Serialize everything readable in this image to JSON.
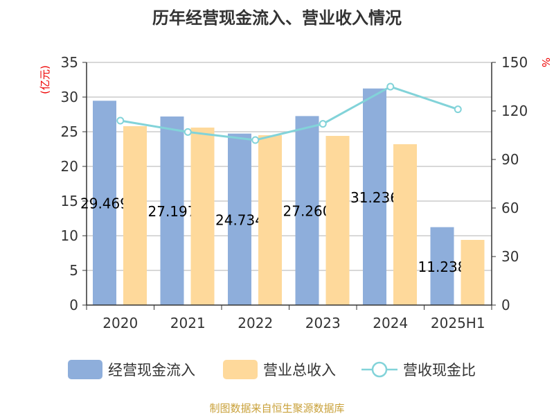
{
  "title": "历年经营现金流入、营业收入情况",
  "source": "制图数据来自恒生聚源数据库",
  "chart_data": {
    "type": "bar+line",
    "categories": [
      "2020",
      "2021",
      "2022",
      "2023",
      "2024",
      "2025H1"
    ],
    "y_left": {
      "label": "(亿元)",
      "min": 0,
      "max": 35,
      "ticks": [
        0,
        5,
        10,
        15,
        20,
        25,
        30,
        35
      ]
    },
    "y_right": {
      "label": "%",
      "min": 0,
      "max": 150,
      "ticks": [
        0,
        30,
        60,
        90,
        120,
        150
      ]
    },
    "grid": true,
    "legend_position": "bottom",
    "series": [
      {
        "name": "经营现金流入",
        "type": "bar",
        "axis": "left",
        "color": "#8eaedb",
        "values": [
          29.469,
          27.197,
          24.734,
          27.26,
          31.236,
          11.238
        ],
        "labels": [
          "29.469",
          "27.197",
          "24.734",
          "27.260",
          "31.236",
          "11.238"
        ]
      },
      {
        "name": "营业总收入",
        "type": "bar",
        "axis": "left",
        "color": "#fed99b",
        "values": [
          25.8,
          25.6,
          24.5,
          24.4,
          23.2,
          9.4
        ]
      },
      {
        "name": "营收现金比",
        "type": "line",
        "axis": "right",
        "color": "#82d3d9",
        "values": [
          114,
          107,
          102,
          112,
          135,
          121
        ]
      }
    ]
  }
}
